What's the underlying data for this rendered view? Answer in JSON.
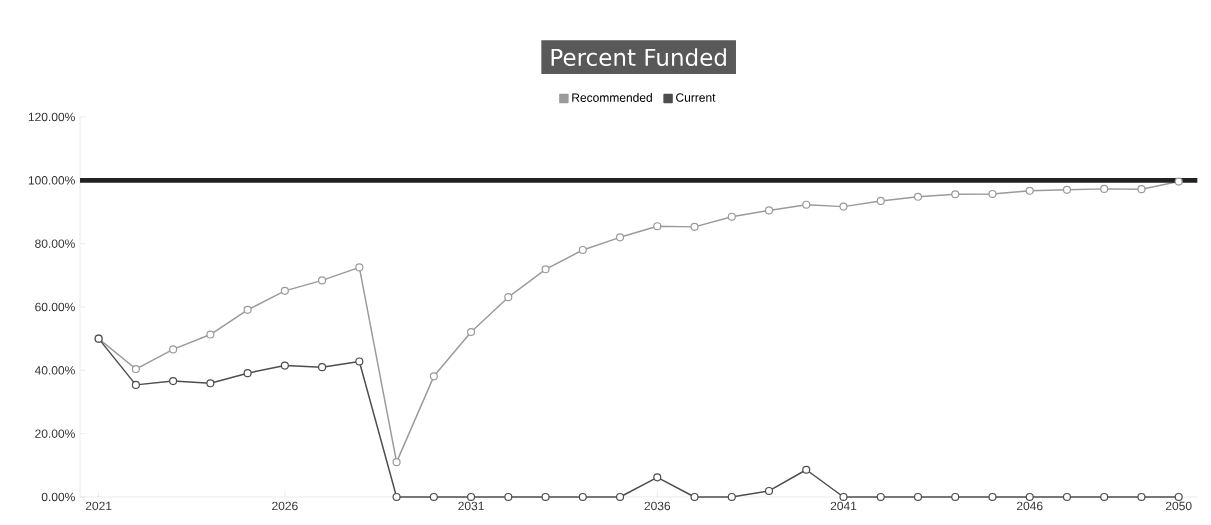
{
  "chart_data": {
    "type": "line",
    "title": "Percent Funded",
    "x": [
      2021,
      2022,
      2023,
      2024,
      2025,
      2026,
      2027,
      2028,
      2029,
      2030,
      2031,
      2032,
      2033,
      2034,
      2035,
      2036,
      2037,
      2038,
      2039,
      2040,
      2041,
      2042,
      2043,
      2044,
      2045,
      2046,
      2047,
      2048,
      2049,
      2050
    ],
    "series": [
      {
        "name": "Recommended",
        "color": "#9a9a9a",
        "values": [
          50,
          40.4,
          46.6,
          51.3,
          59.1,
          65.1,
          68.4,
          72.5,
          11,
          38.1,
          52.1,
          63.1,
          71.9,
          78,
          82,
          85.5,
          85.3,
          88.5,
          90.5,
          92.3,
          91.7,
          93.5,
          94.8,
          95.6,
          95.7,
          96.7,
          97,
          97.3,
          97.2,
          99.6
        ]
      },
      {
        "name": "Current",
        "color": "#4d4d4d",
        "values": [
          50,
          35.4,
          36.6,
          35.9,
          39.1,
          41.5,
          41,
          42.8,
          0,
          0,
          0,
          0,
          0,
          0,
          0,
          6.2,
          0,
          0,
          1.9,
          8.6,
          0,
          0,
          0,
          0,
          0,
          0,
          0,
          0,
          0,
          0
        ]
      }
    ],
    "xlim": [
      2020.5,
      2050.5
    ],
    "xticks": [
      2021,
      2026,
      2031,
      2036,
      2041,
      2046,
      2050
    ],
    "ylim": [
      0,
      120
    ],
    "yticks": [
      {
        "value": 0,
        "label": "0.00%"
      },
      {
        "value": 20,
        "label": "20.00%"
      },
      {
        "value": 40,
        "label": "40.00%"
      },
      {
        "value": 60,
        "label": "60.00%"
      },
      {
        "value": 80,
        "label": "80.00%"
      },
      {
        "value": 100,
        "label": "100.00%"
      },
      {
        "value": 120,
        "label": "120.00%"
      }
    ],
    "ref_lines": [
      {
        "axis": "y",
        "value": 100,
        "color": "#222222"
      }
    ],
    "legend": "top",
    "marker": "circle",
    "line_style": "solid",
    "grid": false
  }
}
